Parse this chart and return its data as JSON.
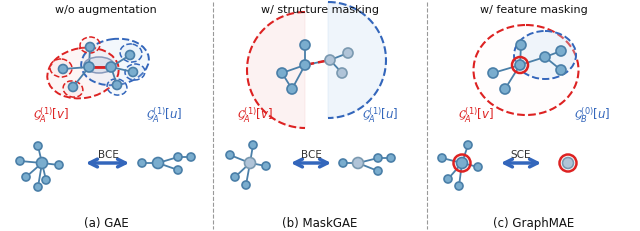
{
  "bg_color": "#ffffff",
  "node_color": "#7aadce",
  "node_edge_color": "#4a7fa8",
  "node_color_light": "#aaccdd",
  "red_color": "#dd2222",
  "blue_color": "#3366bb",
  "red_fill": "#f5cccc",
  "blue_fill": "#cce0f5",
  "masked_color": "#b0c4d8",
  "masked_edge": "#7a99b0",
  "divider_color": "#999999",
  "panel_titles": [
    "w/o augmentation",
    "w/ structure masking",
    "w/ feature masking"
  ],
  "panel_labels": [
    "(a) GAE",
    "(b) MaskGAE",
    "(c) GraphMAE"
  ],
  "arrow_labels": [
    "BCE",
    "BCE",
    "SCE"
  ],
  "left_subgraph_labels": [
    "$\\mathcal{G}_A^{(1)}[v]$",
    "$\\mathcal{G}_A^{(1)}[v]$",
    "$\\mathcal{G}_A^{(1)}[v]$"
  ],
  "right_subgraph_labels": [
    "$\\mathcal{G}_A^{(1)}[u]$",
    "$\\mathcal{G}_A^{(1)}[u]$",
    "$\\mathcal{G}_B^{(0)}[u]$"
  ]
}
